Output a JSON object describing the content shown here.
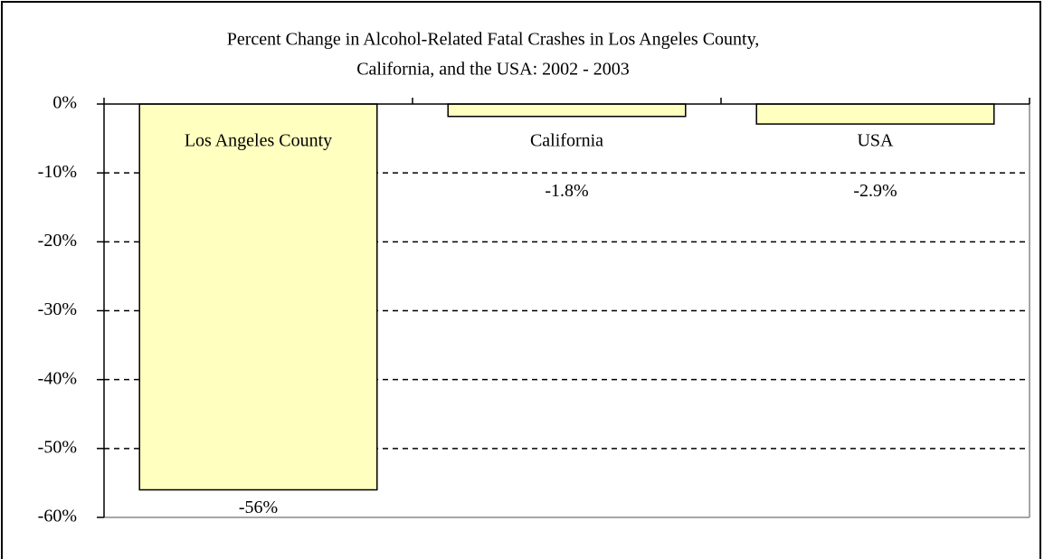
{
  "chart_data": {
    "type": "bar",
    "title": [
      "Percent Change in Alcohol-Related Fatal Crashes in Los Angeles County,",
      "California, and the USA: 2002 - 2003"
    ],
    "categories": [
      "Los Angeles County",
      "California",
      "USA"
    ],
    "values": [
      -56,
      -1.8,
      -2.9
    ],
    "value_labels": [
      "-56%",
      "-1.8%",
      "-2.9%"
    ],
    "color": "#ffffc0",
    "ylim": [
      -60,
      0
    ],
    "yticks": [
      {
        "value": 0,
        "label": "0%"
      },
      {
        "value": -10,
        "label": "-10%"
      },
      {
        "value": -20,
        "label": "-20%"
      },
      {
        "value": -30,
        "label": "-30%"
      },
      {
        "value": -40,
        "label": "-40%"
      },
      {
        "value": -50,
        "label": "-50%"
      },
      {
        "value": -60,
        "label": "-60%"
      }
    ],
    "grid": true
  }
}
